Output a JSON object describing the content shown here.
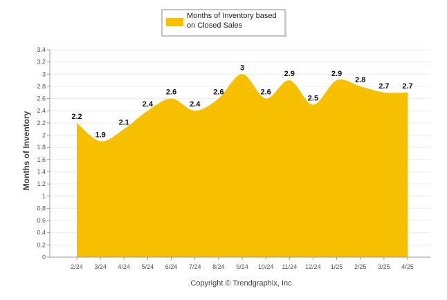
{
  "chart_data": {
    "type": "area",
    "categories": [
      "2/24",
      "3/24",
      "4/24",
      "5/24",
      "6/24",
      "7/24",
      "8/24",
      "9/24",
      "10/24",
      "11/24",
      "12/24",
      "1/25",
      "2/25",
      "3/25",
      "4/25"
    ],
    "series": [
      {
        "name": "Months of Inventory based on Closed Sales",
        "values": [
          2.2,
          1.9,
          2.1,
          2.4,
          2.6,
          2.4,
          2.6,
          3,
          2.6,
          2.9,
          2.5,
          2.9,
          2.8,
          2.7,
          2.7
        ],
        "color": "#F6C000"
      }
    ],
    "legend": {
      "line1": "Months of Inventory based",
      "line2": "on Closed Sales",
      "position": "top-center"
    },
    "ylabel": "Months of Inventory",
    "xlabel": "",
    "ylim": [
      0,
      3.4
    ],
    "yticks": [
      "0",
      "0.2",
      "0.4",
      "0.6",
      "0.8",
      "1",
      "1.2",
      "1.4",
      "1.6",
      "1.8",
      "2",
      "2.2",
      "2.4",
      "2.6",
      "2.8",
      "3",
      "3.2",
      "3.4"
    ],
    "grid": true
  },
  "footer": {
    "copyright": "Copyright © Trendgraphix, Inc."
  }
}
